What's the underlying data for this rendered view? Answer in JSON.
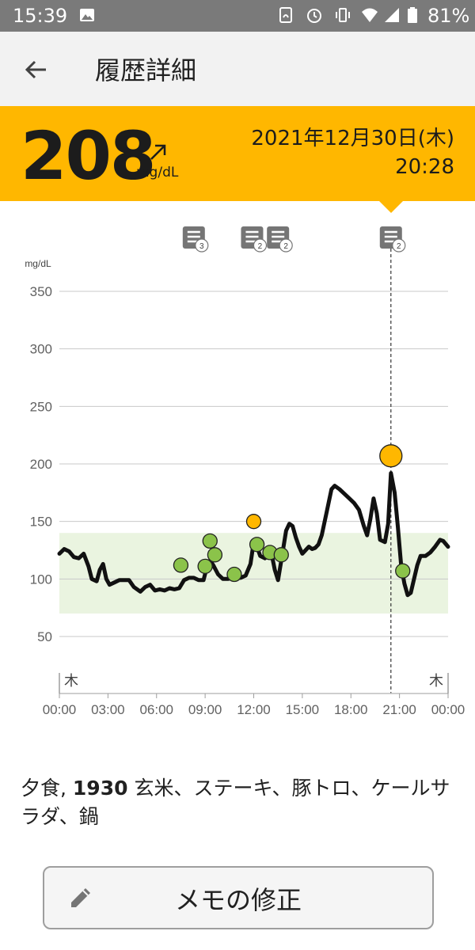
{
  "status_bar": {
    "time": "15:39",
    "battery": "81%",
    "icons": [
      "image-icon",
      "nfc-icon",
      "alarm-icon",
      "vibrate-icon",
      "wifi-icon",
      "signal-icon",
      "battery-icon"
    ]
  },
  "app_bar": {
    "title": "履歴詳細",
    "back_icon": "back-arrow-icon"
  },
  "reading": {
    "value": "208",
    "unit": "mg/dL",
    "trend_icon": "arrow-up-right-icon",
    "date": "2021年12月30日(木)",
    "time": "20:28"
  },
  "colors": {
    "accent": "#ffb700",
    "target_band": "#eaf4e0",
    "green_marker": "#8bc34a",
    "orange_marker": "#ffb700"
  },
  "memo": {
    "meal": "夕食,",
    "time": "1930",
    "text": "玄米、ステーキ、豚トロ、ケールサラダ、鍋"
  },
  "edit_button": {
    "label": "メモの修正",
    "icon": "pencil-icon"
  },
  "chart_data": {
    "type": "line",
    "ylabel": "mg/dL",
    "y_ticks": [
      50,
      100,
      150,
      200,
      250,
      300,
      350
    ],
    "ylim": [
      20,
      360
    ],
    "x_ticks": [
      "00:00",
      "03:00",
      "06:00",
      "09:00",
      "12:00",
      "15:00",
      "18:00",
      "21:00",
      "00:00"
    ],
    "xlim_hours": [
      0,
      24
    ],
    "day_labels": [
      {
        "text": "木",
        "position": "left"
      },
      {
        "text": "木",
        "position": "right"
      }
    ],
    "target_range": [
      70,
      140
    ],
    "grid": true,
    "selected_time_hours": 20.47,
    "series": [
      {
        "values": [
          [
            0.0,
            122
          ],
          [
            0.3,
            126
          ],
          [
            0.6,
            124
          ],
          [
            0.9,
            119
          ],
          [
            1.2,
            118
          ],
          [
            1.5,
            122
          ],
          [
            1.8,
            111
          ],
          [
            2.0,
            100
          ],
          [
            2.3,
            98
          ],
          [
            2.5,
            108
          ],
          [
            2.7,
            113
          ],
          [
            2.9,
            100
          ],
          [
            3.1,
            95
          ],
          [
            3.4,
            97
          ],
          [
            3.7,
            99
          ],
          [
            4.0,
            99
          ],
          [
            4.3,
            99
          ],
          [
            4.6,
            93
          ],
          [
            5.0,
            89
          ],
          [
            5.3,
            93
          ],
          [
            5.6,
            95
          ],
          [
            5.9,
            90
          ],
          [
            6.2,
            91
          ],
          [
            6.5,
            90
          ],
          [
            6.8,
            92
          ],
          [
            7.1,
            91
          ],
          [
            7.4,
            92
          ],
          [
            7.7,
            99
          ],
          [
            8.0,
            101
          ],
          [
            8.3,
            101
          ],
          [
            8.6,
            99
          ],
          [
            8.9,
            99
          ],
          [
            9.1,
            110
          ],
          [
            9.3,
            116
          ],
          [
            9.5,
            112
          ],
          [
            9.8,
            104
          ],
          [
            10.1,
            100
          ],
          [
            10.4,
            100
          ],
          [
            10.7,
            101
          ],
          [
            11.0,
            101
          ],
          [
            11.2,
            101
          ],
          [
            11.5,
            103
          ],
          [
            11.8,
            113
          ],
          [
            12.0,
            132
          ],
          [
            12.2,
            128
          ],
          [
            12.4,
            120
          ],
          [
            12.7,
            118
          ],
          [
            12.9,
            124
          ],
          [
            13.1,
            122
          ],
          [
            13.3,
            108
          ],
          [
            13.5,
            99
          ],
          [
            13.7,
            116
          ],
          [
            14.0,
            142
          ],
          [
            14.2,
            148
          ],
          [
            14.4,
            146
          ],
          [
            14.6,
            136
          ],
          [
            14.8,
            128
          ],
          [
            15.0,
            122
          ],
          [
            15.2,
            125
          ],
          [
            15.4,
            128
          ],
          [
            15.6,
            126
          ],
          [
            15.8,
            127
          ],
          [
            16.0,
            130
          ],
          [
            16.2,
            138
          ],
          [
            16.5,
            158
          ],
          [
            16.8,
            178
          ],
          [
            17.0,
            181
          ],
          [
            17.3,
            178
          ],
          [
            17.6,
            174
          ],
          [
            17.9,
            170
          ],
          [
            18.2,
            166
          ],
          [
            18.5,
            160
          ],
          [
            18.8,
            146
          ],
          [
            19.0,
            138
          ],
          [
            19.2,
            152
          ],
          [
            19.4,
            170
          ],
          [
            19.6,
            157
          ],
          [
            19.8,
            134
          ],
          [
            20.1,
            132
          ],
          [
            20.3,
            148
          ],
          [
            20.47,
            192
          ],
          [
            20.7,
            175
          ],
          [
            20.9,
            145
          ],
          [
            21.1,
            112
          ],
          [
            21.3,
            96
          ],
          [
            21.5,
            86
          ],
          [
            21.7,
            88
          ],
          [
            21.9,
            100
          ],
          [
            22.1,
            112
          ],
          [
            22.3,
            120
          ],
          [
            22.6,
            120
          ],
          [
            22.9,
            123
          ],
          [
            23.2,
            128
          ],
          [
            23.5,
            134
          ],
          [
            23.7,
            133
          ],
          [
            24.0,
            128
          ]
        ]
      }
    ],
    "markers": [
      {
        "x": 7.5,
        "y": 112,
        "color": "green"
      },
      {
        "x": 9.0,
        "y": 111,
        "color": "green"
      },
      {
        "x": 9.3,
        "y": 133,
        "color": "green"
      },
      {
        "x": 9.6,
        "y": 121,
        "color": "green"
      },
      {
        "x": 10.8,
        "y": 104,
        "color": "green"
      },
      {
        "x": 12.0,
        "y": 150,
        "color": "orange"
      },
      {
        "x": 12.2,
        "y": 130,
        "color": "green"
      },
      {
        "x": 13.0,
        "y": 123,
        "color": "green"
      },
      {
        "x": 13.7,
        "y": 121,
        "color": "green"
      },
      {
        "x": 20.47,
        "y": 207,
        "color": "orange",
        "large": true
      },
      {
        "x": 21.2,
        "y": 107,
        "color": "green"
      }
    ],
    "notes": [
      {
        "x": 8.3,
        "count": "3"
      },
      {
        "x": 11.9,
        "count": "2"
      },
      {
        "x": 13.5,
        "count": "2"
      },
      {
        "x": 20.47,
        "count": "2"
      }
    ]
  }
}
